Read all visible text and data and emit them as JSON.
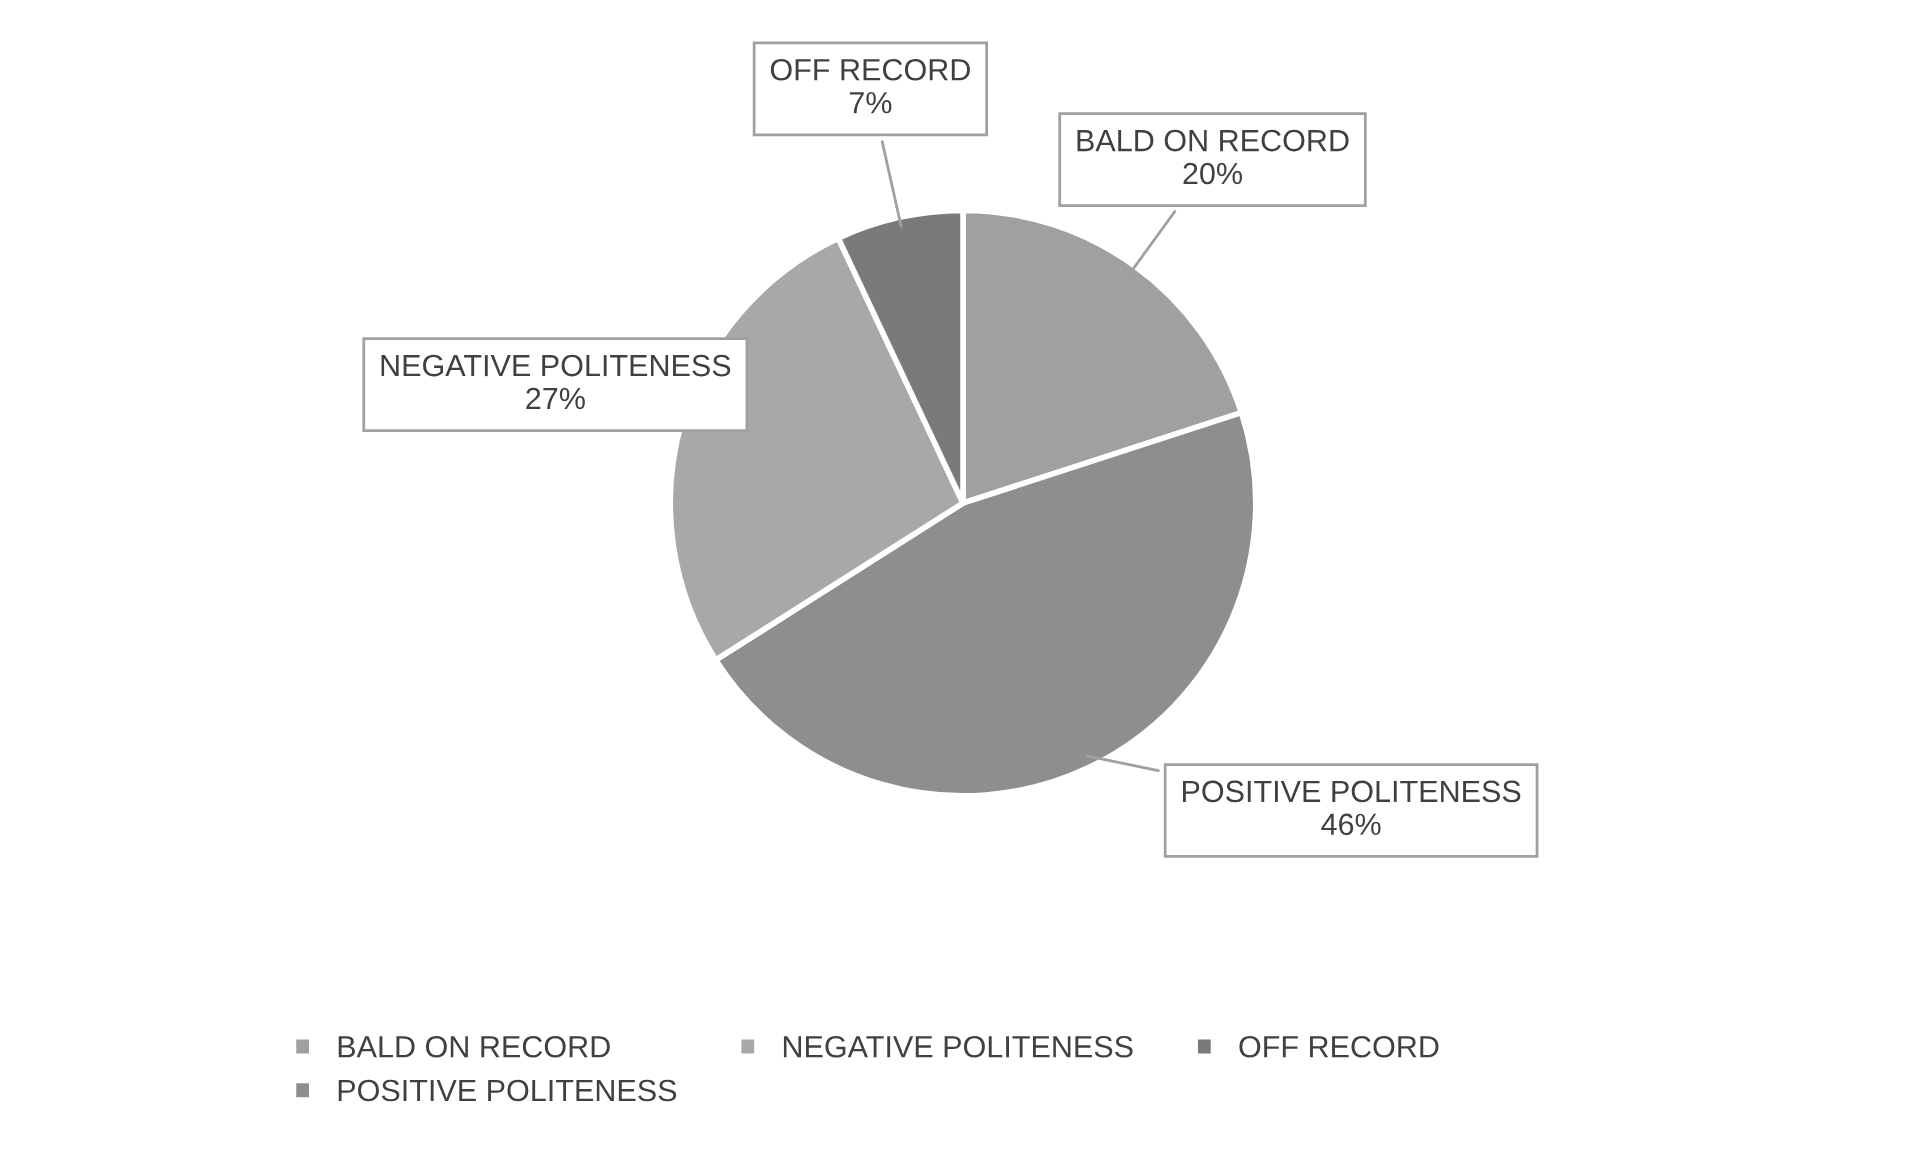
{
  "chart_data": {
    "type": "pie",
    "categories": [
      "BALD ON RECORD",
      "POSITIVE POLITENESS",
      "NEGATIVE POLITENESS",
      "OFF RECORD"
    ],
    "values": [
      20,
      46,
      27,
      7
    ],
    "value_labels": [
      "20%",
      "46%",
      "27%",
      "7%"
    ],
    "colors": [
      "#a0a0a0",
      "#8e8e8e",
      "#a8a8a8",
      "#7a7a7a"
    ],
    "legend": "bottom"
  }
}
